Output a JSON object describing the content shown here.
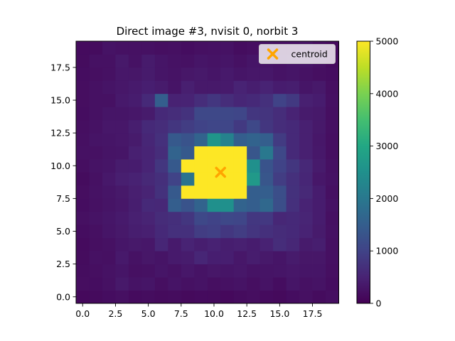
{
  "chart_data": {
    "type": "heatmap",
    "title": "Direct image #3, nvisit 0, norbit 3",
    "xlabel": "",
    "ylabel": "",
    "colormap": "viridis",
    "origin": "lower",
    "grid": false,
    "xlim": [
      -0.5,
      19.5
    ],
    "ylim": [
      -0.5,
      19.5
    ],
    "x_ticks": [
      0.0,
      2.5,
      5.0,
      7.5,
      10.0,
      12.5,
      15.0,
      17.5
    ],
    "x_tick_labels": [
      "0.0",
      "2.5",
      "5.0",
      "7.5",
      "10.0",
      "12.5",
      "15.0",
      "17.5"
    ],
    "y_ticks": [
      0.0,
      2.5,
      5.0,
      7.5,
      10.0,
      12.5,
      15.0,
      17.5
    ],
    "y_tick_labels": [
      "0.0",
      "2.5",
      "5.0",
      "7.5",
      "10.0",
      "12.5",
      "15.0",
      "17.5"
    ],
    "colorbar": {
      "min": 0,
      "max": 5000,
      "ticks": [
        0,
        1000,
        2000,
        3000,
        4000,
        5000
      ],
      "tick_labels": [
        "0",
        "1000",
        "2000",
        "3000",
        "4000",
        "5000"
      ]
    },
    "values_note_rows_bottom_to_top": true,
    "values": [
      [
        120,
        140,
        180,
        220,
        150,
        170,
        140,
        160,
        130,
        150,
        140,
        120,
        160,
        190,
        150,
        130,
        180,
        220,
        160,
        210
      ],
      [
        190,
        180,
        230,
        350,
        260,
        300,
        210,
        280,
        240,
        260,
        200,
        240,
        260,
        210,
        270,
        180,
        300,
        240,
        260,
        180
      ],
      [
        170,
        200,
        250,
        300,
        220,
        230,
        300,
        250,
        330,
        270,
        320,
        290,
        330,
        260,
        280,
        300,
        330,
        290,
        300,
        200
      ],
      [
        160,
        230,
        220,
        360,
        250,
        320,
        280,
        370,
        390,
        550,
        430,
        430,
        330,
        410,
        350,
        300,
        380,
        320,
        320,
        220
      ],
      [
        150,
        210,
        240,
        310,
        350,
        330,
        550,
        370,
        500,
        420,
        490,
        420,
        460,
        400,
        480,
        650,
        560,
        380,
        420,
        220
      ],
      [
        180,
        220,
        290,
        350,
        420,
        460,
        600,
        700,
        710,
        900,
        950,
        820,
        900,
        780,
        700,
        640,
        600,
        500,
        380,
        240
      ],
      [
        220,
        260,
        310,
        370,
        450,
        510,
        640,
        680,
        800,
        1100,
        1000,
        1100,
        1050,
        820,
        830,
        560,
        600,
        530,
        400,
        220
      ],
      [
        180,
        240,
        280,
        330,
        420,
        600,
        580,
        1500,
        1300,
        1600,
        2500,
        2500,
        1600,
        1500,
        1700,
        1200,
        700,
        500,
        400,
        250
      ],
      [
        190,
        250,
        300,
        350,
        440,
        510,
        720,
        1400,
        5000,
        5000,
        5000,
        5000,
        5000,
        1500,
        1500,
        1200,
        720,
        590,
        400,
        220
      ],
      [
        160,
        230,
        340,
        440,
        490,
        590,
        690,
        1000,
        1900,
        5000,
        5000,
        5000,
        5000,
        2700,
        1350,
        900,
        700,
        540,
        330,
        250
      ],
      [
        210,
        260,
        300,
        390,
        400,
        520,
        800,
        1400,
        5000,
        5000,
        5000,
        5000,
        5000,
        2500,
        1300,
        1000,
        800,
        580,
        380,
        230
      ],
      [
        240,
        230,
        280,
        300,
        450,
        520,
        650,
        1600,
        1400,
        5000,
        5000,
        5000,
        5000,
        1350,
        2000,
        1100,
        600,
        450,
        340,
        200
      ],
      [
        220,
        280,
        300,
        330,
        380,
        550,
        700,
        1400,
        1300,
        1600,
        2600,
        2200,
        1500,
        1600,
        1500,
        880,
        600,
        450,
        330,
        210
      ],
      [
        200,
        250,
        330,
        330,
        420,
        600,
        650,
        800,
        900,
        1000,
        1050,
        1050,
        850,
        1100,
        800,
        650,
        600,
        460,
        350,
        220
      ],
      [
        180,
        230,
        300,
        300,
        330,
        380,
        600,
        650,
        740,
        1100,
        1100,
        1100,
        1050,
        800,
        760,
        650,
        500,
        380,
        350,
        200
      ],
      [
        190,
        240,
        230,
        360,
        400,
        600,
        1500,
        480,
        500,
        650,
        800,
        650,
        550,
        600,
        700,
        1000,
        850,
        450,
        400,
        220
      ],
      [
        190,
        240,
        280,
        330,
        370,
        430,
        380,
        280,
        440,
        350,
        350,
        370,
        500,
        420,
        500,
        400,
        420,
        300,
        350,
        200
      ],
      [
        180,
        210,
        240,
        330,
        320,
        380,
        300,
        270,
        320,
        350,
        300,
        360,
        290,
        330,
        330,
        270,
        290,
        250,
        210,
        180
      ],
      [
        160,
        230,
        230,
        350,
        250,
        380,
        300,
        250,
        240,
        300,
        260,
        300,
        230,
        300,
        280,
        250,
        290,
        300,
        240,
        150
      ],
      [
        150,
        160,
        270,
        230,
        240,
        240,
        200,
        220,
        180,
        220,
        230,
        250,
        170,
        200,
        230,
        210,
        220,
        250,
        160,
        130
      ]
    ],
    "annotations": [
      {
        "type": "marker",
        "label": "centroid",
        "marker": "x",
        "color": "#FFA500",
        "x": 10.5,
        "y": 9.5
      }
    ],
    "legend": {
      "entries": [
        "centroid"
      ],
      "placement": "top-right"
    }
  }
}
